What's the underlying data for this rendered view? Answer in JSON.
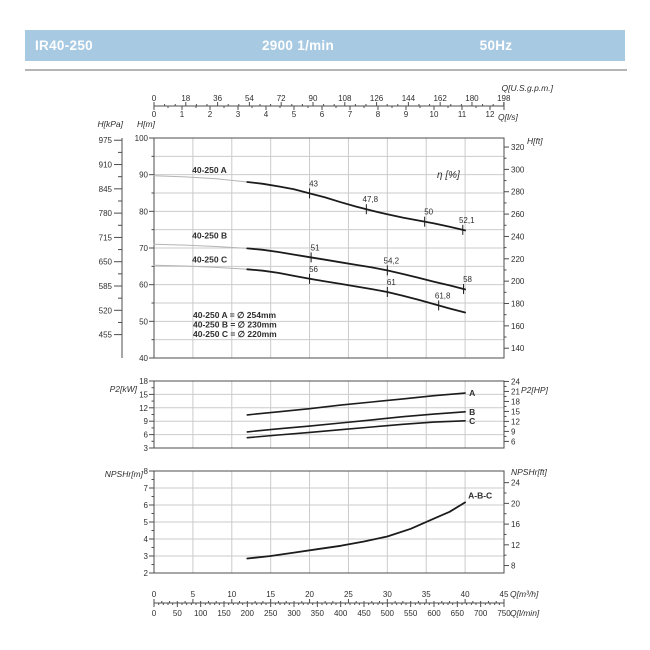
{
  "header": {
    "model": "IR40-250",
    "speed": "2900 1/min",
    "frequency": "50Hz"
  },
  "colors": {
    "header_bg": "#a7c9e2",
    "header_text": "#ffffff",
    "divider": "#b5b5b5",
    "grid": "#cbcbcb",
    "frame": "#4d4d4d",
    "curve": "#1c1c1c",
    "curve_light": "#b4b4b4",
    "text": "#2e2e2e"
  },
  "chart_data": [
    {
      "id": "head-flow-chart",
      "type": "line",
      "title": "Head vs flow with efficiency markers",
      "x_unit": "m3/h",
      "x_range": [
        0,
        45
      ],
      "top_axis_gpm": {
        "label": "Q[U.S.g.p.m.]",
        "ticks": [
          0,
          18,
          36,
          54,
          72,
          90,
          108,
          126,
          144,
          162,
          180,
          198
        ],
        "minor_step": 6
      },
      "top_axis_ls": {
        "label": "Q[l/s]",
        "ticks": [
          0,
          1,
          2,
          3,
          4,
          5,
          6,
          7,
          8,
          9,
          10,
          11,
          12
        ],
        "minor_step": 0.5
      },
      "left_axis_kpa": {
        "label": "H[kPa]",
        "ticks": [
          975,
          910,
          845,
          780,
          715,
          650,
          585,
          520,
          455
        ]
      },
      "left_axis_m": {
        "label": "H[m]",
        "range": [
          40,
          100
        ],
        "ticks": [
          100,
          90,
          80,
          70,
          60,
          50,
          40
        ],
        "minor_step": 5,
        "grid_step": 5
      },
      "right_axis_ft": {
        "label": "H[ft]",
        "ticks": [
          320,
          300,
          280,
          260,
          240,
          220,
          200,
          180,
          160,
          140
        ],
        "minor_step": 10
      },
      "eta_label": "η [%]",
      "series": [
        {
          "name": "40-250 A",
          "label_pos": [
            4.9,
            90.4
          ],
          "light": [
            [
              0,
              89.7
            ],
            [
              4,
              89.4
            ],
            [
              8,
              88.9
            ],
            [
              12,
              88.0
            ]
          ],
          "points": [
            [
              12,
              88.0
            ],
            [
              14,
              87.5
            ],
            [
              16,
              86.8
            ],
            [
              18,
              86.0
            ],
            [
              20,
              84.9
            ],
            [
              22,
              83.8
            ],
            [
              24,
              82.5
            ],
            [
              26,
              81.3
            ],
            [
              28,
              80.2
            ],
            [
              30,
              79.2
            ],
            [
              32,
              78.3
            ],
            [
              34,
              77.5
            ],
            [
              36,
              76.7
            ],
            [
              38,
              75.8
            ],
            [
              40,
              74.8
            ]
          ],
          "markers": [
            {
              "q": 20,
              "label": "43"
            },
            {
              "q": 27.3,
              "label": "47,8"
            },
            {
              "q": 34.8,
              "label": "50"
            },
            {
              "q": 39.7,
              "label": "52,1"
            }
          ]
        },
        {
          "name": "40-250 B",
          "label_pos": [
            4.9,
            72.6
          ],
          "light": [
            [
              0,
              71.0
            ],
            [
              4,
              70.8
            ],
            [
              8,
              70.4
            ],
            [
              12,
              69.9
            ]
          ],
          "points": [
            [
              12,
              69.9
            ],
            [
              14,
              69.5
            ],
            [
              16,
              68.9
            ],
            [
              18,
              68.2
            ],
            [
              20,
              67.5
            ],
            [
              22,
              66.8
            ],
            [
              24,
              66.1
            ],
            [
              26,
              65.4
            ],
            [
              28,
              64.7
            ],
            [
              30,
              63.9
            ],
            [
              32,
              62.9
            ],
            [
              34,
              61.9
            ],
            [
              36,
              60.8
            ],
            [
              38,
              59.8
            ],
            [
              40,
              58.7
            ]
          ],
          "markers": [
            {
              "q": 20.2,
              "label": "51"
            },
            {
              "q": 30,
              "label": "54,2"
            },
            {
              "q": 39.8,
              "label": "58"
            }
          ]
        },
        {
          "name": "40-250 C",
          "label_pos": [
            4.9,
            66.1
          ],
          "light": [
            [
              0,
              65.3
            ],
            [
              4,
              65.1
            ],
            [
              8,
              64.7
            ],
            [
              12,
              64.2
            ]
          ],
          "points": [
            [
              12,
              64.2
            ],
            [
              14,
              63.8
            ],
            [
              16,
              63.2
            ],
            [
              18,
              62.4
            ],
            [
              20,
              61.6
            ],
            [
              22,
              60.9
            ],
            [
              24,
              60.2
            ],
            [
              26,
              59.5
            ],
            [
              28,
              58.8
            ],
            [
              30,
              58.0
            ],
            [
              32,
              57.0
            ],
            [
              34,
              55.9
            ],
            [
              36,
              54.7
            ],
            [
              38,
              53.5
            ],
            [
              40,
              52.4
            ]
          ],
          "markers": [
            {
              "q": 20,
              "label": "56"
            },
            {
              "q": 30,
              "label": "61"
            },
            {
              "q": 36.6,
              "label": "61,8"
            }
          ]
        }
      ],
      "legend": [
        "40-250 A = ∅ 254mm",
        "40-250 B = ∅ 230mm",
        "40-250 C = ∅ 220mm"
      ]
    },
    {
      "id": "power-chart",
      "type": "line",
      "title": "Shaft power vs flow",
      "left_axis": {
        "label": "P2[kW]",
        "range": [
          3,
          18
        ],
        "ticks": [
          18,
          15,
          12,
          9,
          6,
          3
        ],
        "minor_step": 1.5
      },
      "right_axis": {
        "label": "P2[HP]",
        "ticks": [
          24,
          21,
          18,
          15,
          12,
          9,
          6
        ],
        "minor_step": 1.5,
        "kw_per_hp": 0.7457
      },
      "series": [
        {
          "name": "A",
          "points": [
            [
              12,
              10.4
            ],
            [
              16,
              11.1
            ],
            [
              20,
              11.8
            ],
            [
              24,
              12.6
            ],
            [
              28,
              13.3
            ],
            [
              32,
              14.0
            ],
            [
              36,
              14.7
            ],
            [
              40,
              15.3
            ]
          ]
        },
        {
          "name": "B",
          "points": [
            [
              12,
              6.6
            ],
            [
              16,
              7.3
            ],
            [
              20,
              7.9
            ],
            [
              24,
              8.6
            ],
            [
              28,
              9.3
            ],
            [
              32,
              10.0
            ],
            [
              36,
              10.6
            ],
            [
              40,
              11.1
            ]
          ]
        },
        {
          "name": "C",
          "points": [
            [
              12,
              5.3
            ],
            [
              16,
              5.9
            ],
            [
              20,
              6.5
            ],
            [
              24,
              7.1
            ],
            [
              28,
              7.7
            ],
            [
              32,
              8.3
            ],
            [
              36,
              8.8
            ],
            [
              40,
              9.1
            ]
          ]
        }
      ]
    },
    {
      "id": "npsh-chart",
      "type": "line",
      "title": "NPSH required vs flow",
      "left_axis": {
        "label": "NPSHr[m]",
        "range": [
          2,
          8
        ],
        "ticks": [
          8,
          7,
          6,
          5,
          4,
          3,
          2
        ],
        "minor_step": 0.5
      },
      "right_axis": {
        "label": "NPSHr[ft]",
        "ticks": [
          24,
          20,
          16,
          12,
          8
        ],
        "minor_step": 2,
        "m_per_ft": 0.3048
      },
      "series": [
        {
          "name": "A-B-C",
          "points": [
            [
              12,
              2.85
            ],
            [
              15,
              3.0
            ],
            [
              18,
              3.2
            ],
            [
              21,
              3.4
            ],
            [
              24,
              3.6
            ],
            [
              27,
              3.85
            ],
            [
              30,
              4.15
            ],
            [
              33,
              4.6
            ],
            [
              36,
              5.2
            ],
            [
              38,
              5.6
            ],
            [
              40,
              6.15
            ]
          ]
        }
      ]
    }
  ],
  "bottom_axis": {
    "m3h": {
      "label": "Q[m³/h]",
      "ticks": [
        0,
        5,
        10,
        15,
        20,
        25,
        30,
        35,
        40,
        45
      ],
      "minor_step": 1
    },
    "lmin": {
      "label": "Q[l/min]",
      "ticks": [
        0,
        50,
        100,
        150,
        200,
        250,
        300,
        350,
        400,
        450,
        500,
        550,
        600,
        650,
        700,
        750
      ],
      "minor_step": 10
    }
  }
}
